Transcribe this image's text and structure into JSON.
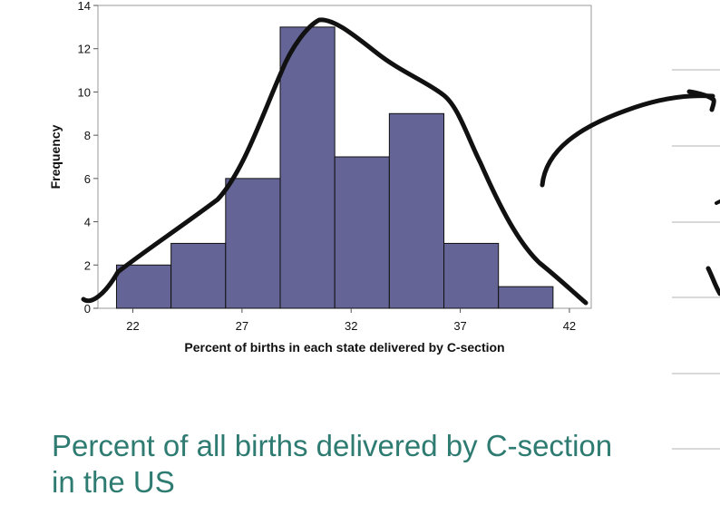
{
  "caption": "Percent of all births delivered by C-section in the US",
  "caption_color": "#2e7b72",
  "chart_data": {
    "type": "bar",
    "title": "",
    "xlabel": "Percent of births in each state delivered by C-section",
    "ylabel": "Frequency",
    "bin_edges": [
      21.25,
      23.75,
      26.25,
      28.75,
      31.25,
      33.75,
      36.25,
      38.75,
      41.25
    ],
    "values": [
      2,
      3,
      6,
      13,
      7,
      9,
      3,
      1
    ],
    "xticks": [
      22,
      27,
      32,
      37,
      42
    ],
    "yticks": [
      0,
      2,
      4,
      6,
      8,
      10,
      12,
      14
    ],
    "xlim": [
      20.4,
      43
    ],
    "ylim": [
      0,
      14
    ],
    "bar_color": "#646496",
    "grid": false
  }
}
